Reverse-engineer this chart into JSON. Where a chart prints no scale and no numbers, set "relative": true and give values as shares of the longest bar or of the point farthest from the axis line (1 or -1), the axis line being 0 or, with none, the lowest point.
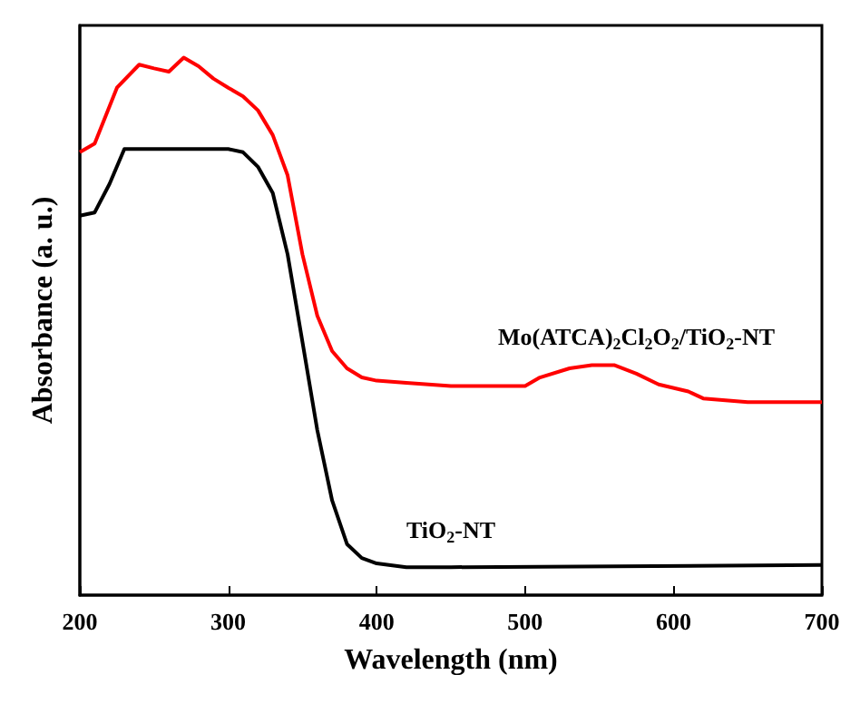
{
  "chart_data": {
    "type": "line",
    "relative": true,
    "xlabel": "Wavelength (nm)",
    "ylabel": "Absorbance (a. u.)",
    "xlim": [
      200,
      700
    ],
    "xticks": [
      200,
      300,
      400,
      500,
      600,
      700
    ],
    "legend": false,
    "grid": false,
    "marker": "none",
    "series": [
      {
        "name": "Mo(ATCA)$_{2}$Cl$_{2}$O$_{2}$/TiO$_{2}$-NT",
        "color": "#ff0000",
        "x": [
          200,
          210,
          225,
          240,
          250,
          260,
          270,
          280,
          290,
          300,
          310,
          320,
          330,
          340,
          350,
          360,
          370,
          380,
          390,
          400,
          420,
          450,
          500,
          510,
          530,
          545,
          560,
          575,
          590,
          610,
          620,
          650,
          700
        ],
        "values": [
          0.824,
          0.84,
          0.944,
          0.987,
          0.98,
          0.974,
          1,
          0.984,
          0.961,
          0.944,
          0.928,
          0.902,
          0.856,
          0.781,
          0.634,
          0.52,
          0.454,
          0.422,
          0.405,
          0.399,
          0.395,
          0.389,
          0.389,
          0.405,
          0.422,
          0.428,
          0.428,
          0.412,
          0.392,
          0.379,
          0.366,
          0.359,
          0.359
        ]
      },
      {
        "name": "TiO$_{2}$-NT",
        "color": "#000000",
        "x": [
          200,
          210,
          220,
          230,
          300,
          310,
          320,
          330,
          340,
          350,
          360,
          370,
          380,
          390,
          400,
          420,
          450,
          700
        ],
        "values": [
          0.706,
          0.712,
          0.765,
          0.83,
          0.83,
          0.824,
          0.797,
          0.748,
          0.634,
          0.471,
          0.307,
          0.176,
          0.095,
          0.069,
          0.059,
          0.052,
          0.052,
          0.056
        ]
      }
    ]
  }
}
